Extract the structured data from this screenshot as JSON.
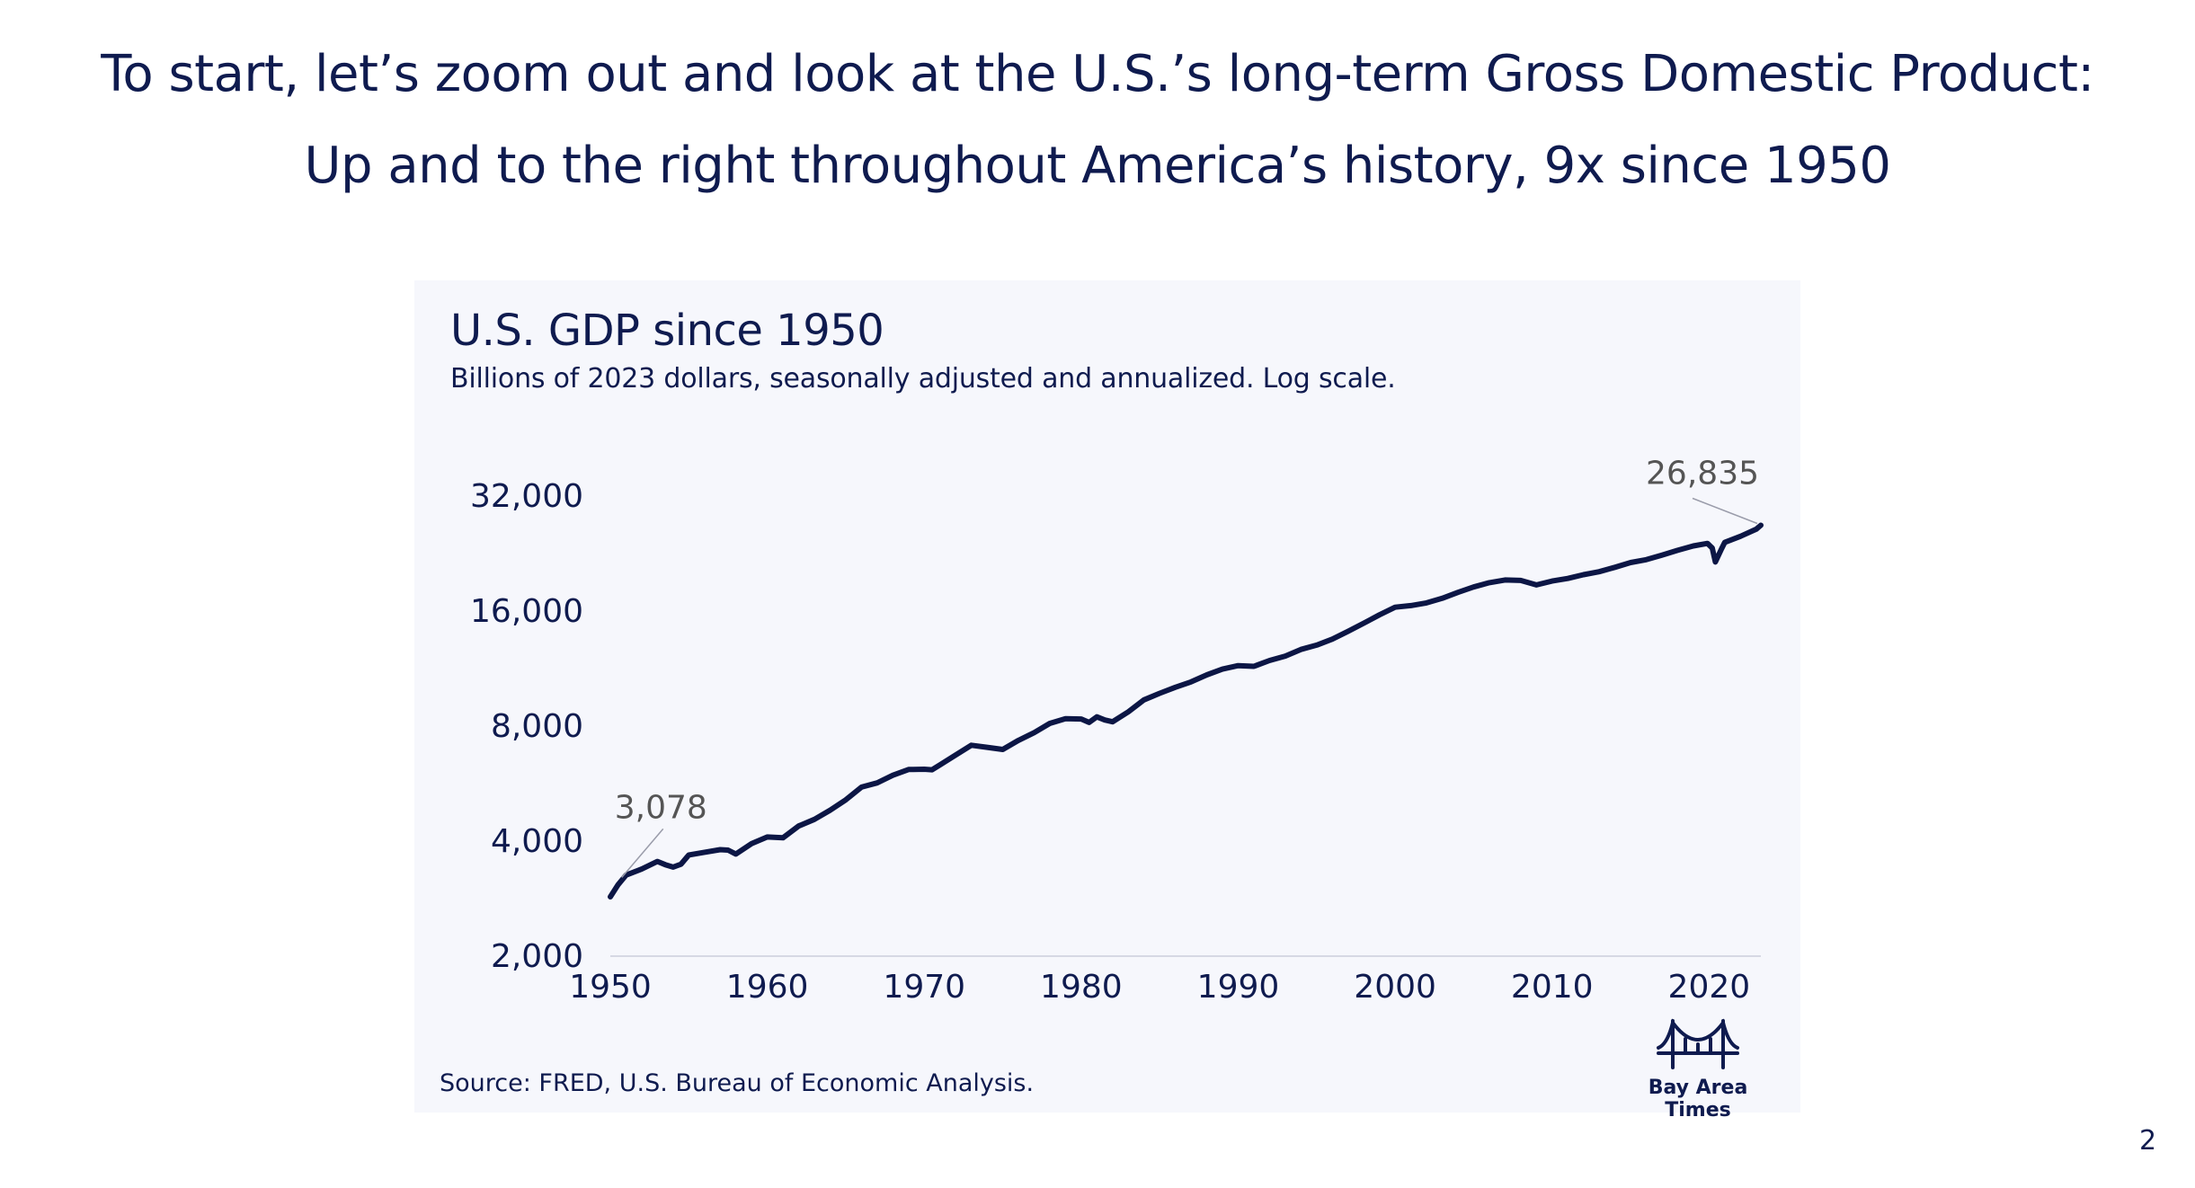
{
  "slide": {
    "headline_line1": "To start, let’s zoom out and look at the U.S.’s long-term Gross Domestic Product:",
    "headline_line2": "Up and to the right throughout America’s history, 9x since 1950",
    "page_number": "2"
  },
  "branding": {
    "logo_text": "Bay Area Times",
    "logo_icon": "golden-gate-bridge-icon"
  },
  "colors": {
    "text": "#0f1b4f",
    "line": "#0c1645",
    "card_background": "#f6f7fc",
    "annotation": "#555555"
  },
  "chart_data": {
    "type": "line",
    "title": "U.S. GDP since 1950",
    "subtitle": "Billions of 2023 dollars, seasonally adjusted and annualized. Log scale.",
    "source": "Source: FRED, U.S. Bureau of Economic Analysis.",
    "y_scale": "log",
    "ylim": [
      2000,
      32000
    ],
    "xlim": [
      1950,
      2023.3
    ],
    "y_ticks": [
      2000,
      4000,
      8000,
      16000,
      32000
    ],
    "y_tick_labels": [
      "2,000",
      "4,000",
      "8,000",
      "16,000",
      "32,000"
    ],
    "x_ticks": [
      1950,
      1960,
      1970,
      1980,
      1990,
      2000,
      2010,
      2020
    ],
    "x_tick_labels": [
      "1950",
      "1960",
      "1970",
      "1980",
      "1990",
      "2000",
      "2010",
      "2020"
    ],
    "grid": false,
    "annotations": [
      {
        "label": "3,078",
        "x": 1950.5,
        "y": 3078
      },
      {
        "label": "26,835",
        "x": 2023.3,
        "y": 26835
      }
    ],
    "series": [
      {
        "x": [
          1950,
          1950.5,
          1951,
          1952,
          1953,
          1953.5,
          1954,
          1954.5,
          1955,
          1956,
          1957,
          1957.5,
          1958,
          1959,
          1960,
          1961,
          1962,
          1963,
          1964,
          1965,
          1966,
          1967,
          1968,
          1969,
          1970,
          1970.5,
          1971,
          1972,
          1973,
          1974,
          1975,
          1976,
          1977,
          1978,
          1979,
          1980,
          1980.5,
          1981,
          1981.5,
          1982,
          1983,
          1984,
          1985,
          1986,
          1987,
          1988,
          1989,
          1990,
          1991,
          1992,
          1993,
          1994,
          1995,
          1996,
          1997,
          1998,
          1999,
          2000,
          2001,
          2002,
          2003,
          2004,
          2005,
          2006,
          2007,
          2008,
          2009,
          2010,
          2011,
          2012,
          2013,
          2014,
          2015,
          2016,
          2017,
          2018,
          2019,
          2019.9,
          2020.2,
          2020.4,
          2020.8,
          2021,
          2022,
          2023,
          2023.3
        ],
        "y": [
          2860,
          3078,
          3260,
          3380,
          3540,
          3470,
          3420,
          3480,
          3680,
          3740,
          3800,
          3790,
          3700,
          3940,
          4100,
          4080,
          4380,
          4560,
          4820,
          5130,
          5540,
          5680,
          5950,
          6160,
          6170,
          6150,
          6330,
          6720,
          7130,
          7040,
          6950,
          7340,
          7690,
          8130,
          8370,
          8350,
          8180,
          8460,
          8300,
          8210,
          8720,
          9370,
          9750,
          10110,
          10440,
          10890,
          11280,
          11520,
          11470,
          11880,
          12200,
          12700,
          13030,
          13510,
          14160,
          14870,
          15640,
          16380,
          16540,
          16810,
          17280,
          17910,
          18500,
          18990,
          19300,
          19250,
          18730,
          19170,
          19480,
          19920,
          20280,
          20830,
          21430,
          21810,
          22420,
          23070,
          23690,
          24050,
          23400,
          21500,
          23300,
          24200,
          25100,
          26200,
          26835
        ]
      }
    ]
  }
}
